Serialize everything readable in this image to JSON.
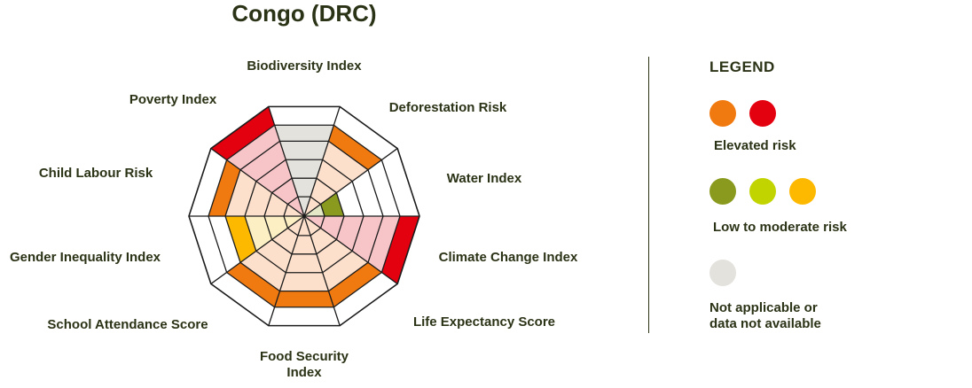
{
  "page_title": "Congo (DRC)",
  "chart_data": {
    "type": "radar",
    "title": "Congo (DRC)",
    "levels": 5,
    "axes": [
      {
        "label": "Biodiversity Index",
        "value": 5,
        "risk": "na"
      },
      {
        "label": "Deforestation Risk",
        "value": 5,
        "risk": "elevated_orange"
      },
      {
        "label": "Water Index",
        "value": 2,
        "risk": "low_green"
      },
      {
        "label": "Climate Change Index",
        "value": 6,
        "risk": "elevated_red"
      },
      {
        "label": "Life Expectancy Score",
        "value": 5,
        "risk": "elevated_orange"
      },
      {
        "label": "Food Security Index",
        "value": 5,
        "risk": "elevated_orange"
      },
      {
        "label": "School Attendance Score",
        "value": 5,
        "risk": "elevated_orange"
      },
      {
        "label": "Gender Inequality Index",
        "value": 4,
        "risk": "low_yellow"
      },
      {
        "label": "Child Labour Risk",
        "value": 5,
        "risk": "elevated_orange"
      },
      {
        "label": "Poverty Index",
        "value": 6,
        "risk": "elevated_red"
      }
    ]
  },
  "risk_colors": {
    "elevated_orange": {
      "strong": "#f07a10",
      "light": "#fde0cc"
    },
    "elevated_red": {
      "strong": "#e3000f",
      "light": "#f7c5c8"
    },
    "low_green": {
      "strong": "#8a9a1e",
      "light": "#e4e8c6"
    },
    "low_lime": {
      "strong": "#c2d400",
      "light": "#eef2bf"
    },
    "low_yellow": {
      "strong": "#fcb900",
      "light": "#fdefc4"
    },
    "na": {
      "strong": "#e4e2dd",
      "light": "#e4e2dd"
    }
  },
  "legend": {
    "title": "LEGEND",
    "groups": [
      {
        "label": "Elevated risk",
        "colors": [
          "#f07a10",
          "#e3000f"
        ]
      },
      {
        "label": "Low to moderate risk",
        "colors": [
          "#8a9a1e",
          "#c2d400",
          "#fcb900"
        ]
      },
      {
        "label_lines": [
          "Not applicable or",
          "data not available"
        ],
        "colors": [
          "#e4e2dd"
        ]
      }
    ]
  }
}
